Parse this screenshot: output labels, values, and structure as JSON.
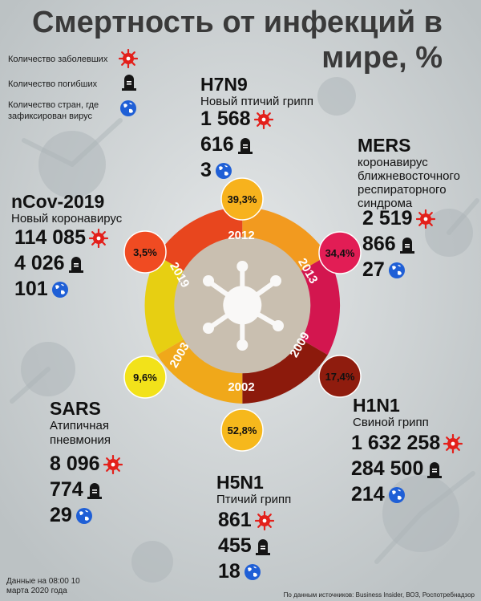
{
  "title": "Смертность от инфекций в мире, %",
  "legend": {
    "cases": "Количество заболевших",
    "deaths": "Количество погибших",
    "countries": "Количество стран, где зафиксирован вирус"
  },
  "colors": {
    "h7n9": "#f29a1f",
    "mers": "#d3164f",
    "h1n1": "#8c1a0c",
    "h5n1": "#f0a81a",
    "sars": "#e7cf12",
    "ncov": "#e8461e",
    "center": "#c9bfb0"
  },
  "viruses": {
    "h7n9": {
      "name": "H7N9",
      "desc": "Новый птичий грипп",
      "cases": "1 568",
      "deaths": "616",
      "countries": "3",
      "rate": "39,3%",
      "year": "2012"
    },
    "mers": {
      "name": "MERS",
      "desc": "коронавирус ближневосточного респираторного синдрома",
      "cases": "2 519",
      "deaths": "866",
      "countries": "27",
      "rate": "34,4%",
      "year": "2013"
    },
    "ncov": {
      "name": "nCov-2019",
      "desc": "Новый коронавирус",
      "cases": "114 085",
      "deaths": "4 026",
      "countries": "101",
      "rate": "3,5%",
      "year": "2019"
    },
    "h1n1": {
      "name": "H1N1",
      "desc": "Свиной грипп",
      "cases": "1 632 258",
      "deaths": "284 500",
      "countries": "214",
      "rate": "17,4%",
      "year": "2009"
    },
    "sars": {
      "name": "SARS",
      "desc": "Атипичная пневмония",
      "cases": "8 096",
      "deaths": "774",
      "countries": "29",
      "rate": "9,6%",
      "year": "2003"
    },
    "h5n1": {
      "name": "H5N1",
      "desc": "Птичий грипп",
      "cases": "861",
      "deaths": "455",
      "countries": "18",
      "rate": "52,8%",
      "year": "2002"
    }
  },
  "footer": {
    "date": "Данные на 08:00 10 марта 2020 года",
    "source": "По данным источников: Business Insider, ВОЗ, Роспотребнадзор"
  }
}
